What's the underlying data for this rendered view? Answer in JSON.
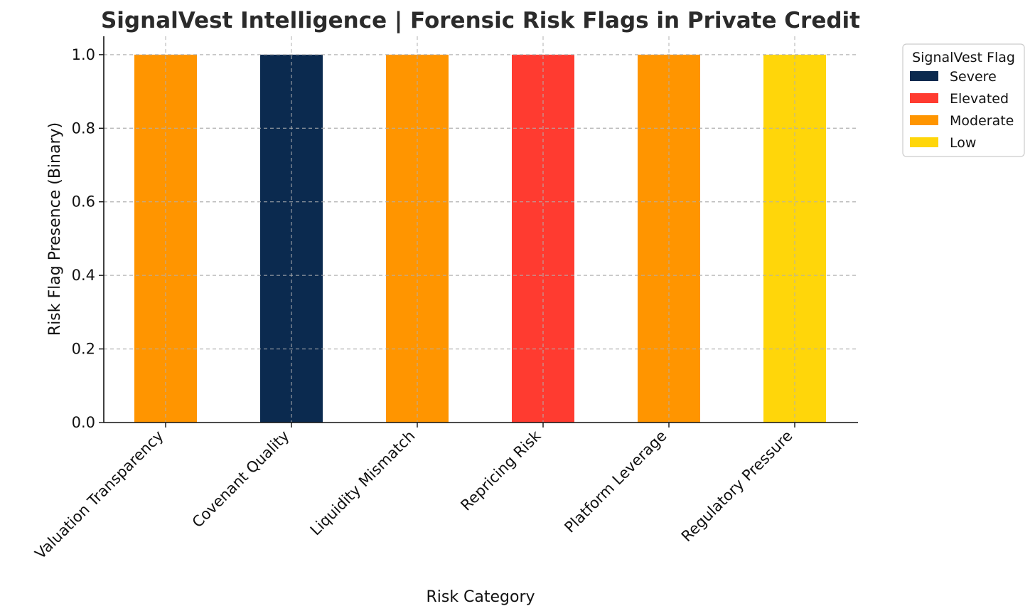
{
  "chart_data": {
    "type": "bar",
    "title": "SignalVest Intelligence | Forensic Risk Flags in Private Credit",
    "xlabel": "Risk Category",
    "ylabel": "Risk Flag Presence (Binary)",
    "ylim": [
      0,
      1.05
    ],
    "yticks": [
      "0.0",
      "0.2",
      "0.4",
      "0.6",
      "0.8",
      "1.0"
    ],
    "ytick_values": [
      0,
      0.2,
      0.4,
      0.6,
      0.8,
      1.0
    ],
    "grid": true,
    "categories": [
      "Valuation Transparency",
      "Covenant Quality",
      "Liquidity Mismatch",
      "Repricing Risk",
      "Platform Leverage",
      "Regulatory Pressure"
    ],
    "values": [
      1,
      1,
      1,
      1,
      1,
      1
    ],
    "flags": [
      "Moderate",
      "Severe",
      "Moderate",
      "Elevated",
      "Moderate",
      "Low"
    ],
    "legend": {
      "title": "SignalVest Flag",
      "placement": "outside-top-right",
      "entries": [
        {
          "label": "Severe",
          "color": "#0b2a4f"
        },
        {
          "label": "Elevated",
          "color": "#ff3b30"
        },
        {
          "label": "Moderate",
          "color": "#ff9500"
        },
        {
          "label": "Low",
          "color": "#ffd60a"
        }
      ]
    }
  }
}
